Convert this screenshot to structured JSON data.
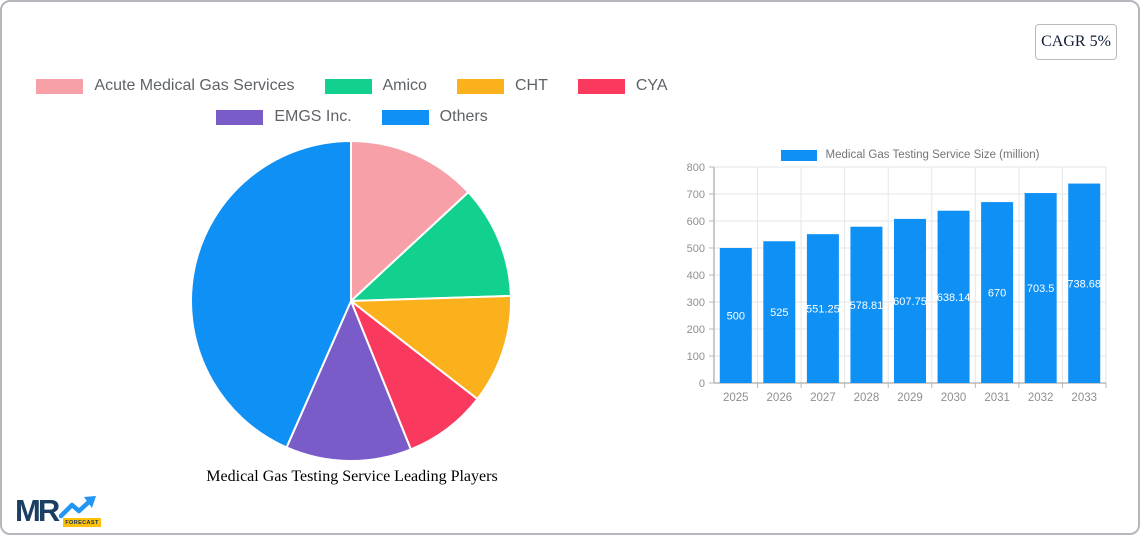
{
  "card": {
    "cagr_badge": "CAGR 5%"
  },
  "logo": {
    "text": "MR",
    "sub": "FORECAST"
  },
  "chart_data": [
    {
      "type": "pie",
      "title": "Medical Gas Testing Service Leading Players",
      "legend_position": "top",
      "start_angle_deg": 0,
      "direction": "clockwise",
      "labels": [
        "Acute Medical Gas Services",
        "Amico",
        "CHT",
        "CYA",
        "EMGS Inc.",
        "Others"
      ],
      "values_percent": [
        13.1,
        11.4,
        11.0,
        8.4,
        12.7,
        43.4
      ],
      "colors": [
        "#F7A0A8",
        "#12D18E",
        "#FBB11B",
        "#F9395E",
        "#7A5CC9",
        "#0E90F5"
      ],
      "slice_border_color": "#ffffff"
    },
    {
      "type": "bar",
      "legend": "Medical Gas Testing Service Size (million)",
      "categories": [
        "2025",
        "2026",
        "2027",
        "2028",
        "2029",
        "2030",
        "2031",
        "2032",
        "2033"
      ],
      "values": [
        500,
        525,
        551.25,
        578.81,
        607.75,
        638.14,
        670,
        703.5,
        738.68
      ],
      "value_labels": [
        "500",
        "525",
        "551.25",
        "578.81",
        "607.75",
        "638.14",
        "670",
        "703.5",
        "738.68"
      ],
      "bar_color": "#0E90F5",
      "ylim": [
        0,
        800
      ],
      "ytick_step": 100,
      "grid": true,
      "value_label_color": "#ffffff",
      "axis_text_color": "#8f8f8f"
    }
  ]
}
